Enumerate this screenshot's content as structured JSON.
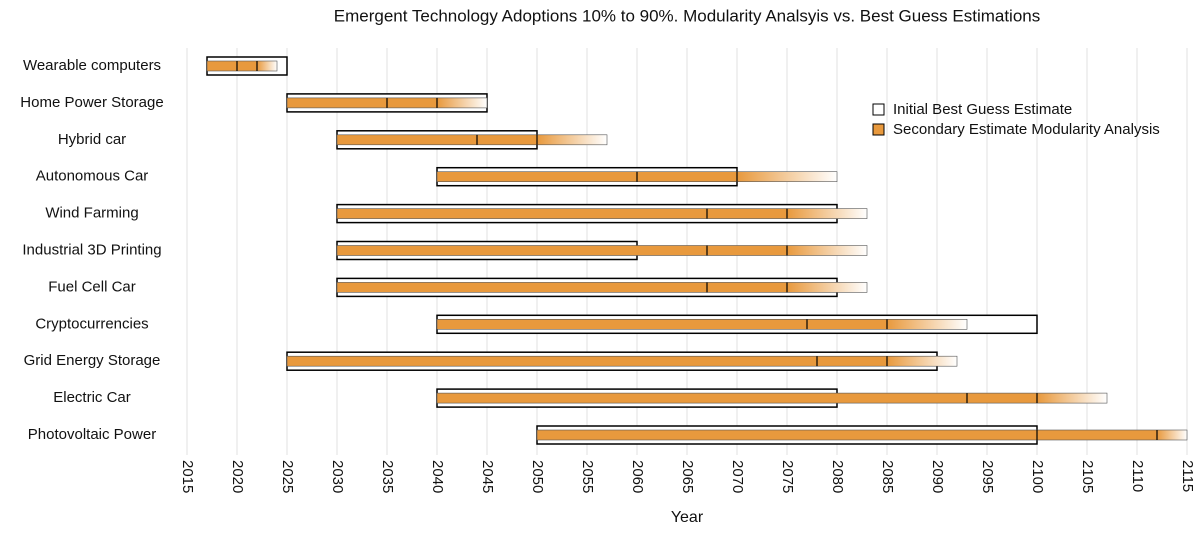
{
  "chart_data": {
    "type": "range",
    "title": "Emergent Technology Adoptions 10% to 90%. Modularity Analsyis vs. Best Guess Estimations",
    "xlabel": "Year",
    "categories": [
      "Wearable computers",
      "Home Power Storage",
      "Hybrid car",
      "Autonomous Car",
      "Wind Farming",
      "Industrial 3D Printing",
      "Fuel Cell Car",
      "Cryptocurrencies",
      "Grid Energy Storage",
      "Electric Car",
      "Photovoltaic Power"
    ],
    "series": [
      {
        "name": "Initial Best Guess Estimate",
        "color": "#ffffff",
        "start": [
          2017,
          2025,
          2030,
          2040,
          2030,
          2030,
          2030,
          2040,
          2025,
          2040,
          2050
        ],
        "end": [
          2025,
          2045,
          2050,
          2070,
          2080,
          2060,
          2080,
          2100,
          2090,
          2080,
          2100
        ]
      },
      {
        "name": "Secondary Estimate Modularity Analysis",
        "color": "#e8993d",
        "start": [
          2017,
          2025,
          2030,
          2040,
          2030,
          2030,
          2030,
          2040,
          2025,
          2040,
          2050
        ],
        "mid": [
          2020,
          2035,
          2044,
          2060,
          2067,
          2067,
          2067,
          2077,
          2078,
          2093,
          2100
        ],
        "high": [
          2022,
          2040,
          2050,
          2070,
          2075,
          2075,
          2075,
          2085,
          2085,
          2100,
          2112
        ],
        "end": [
          2024,
          2045,
          2057,
          2080,
          2083,
          2083,
          2083,
          2093,
          2092,
          2107,
          2115
        ]
      }
    ],
    "xlim": [
      2015,
      2115
    ],
    "xticks": [
      2015,
      2020,
      2025,
      2030,
      2035,
      2040,
      2045,
      2050,
      2055,
      2060,
      2065,
      2070,
      2075,
      2080,
      2085,
      2090,
      2095,
      2100,
      2105,
      2110,
      2115
    ],
    "grid": true
  }
}
